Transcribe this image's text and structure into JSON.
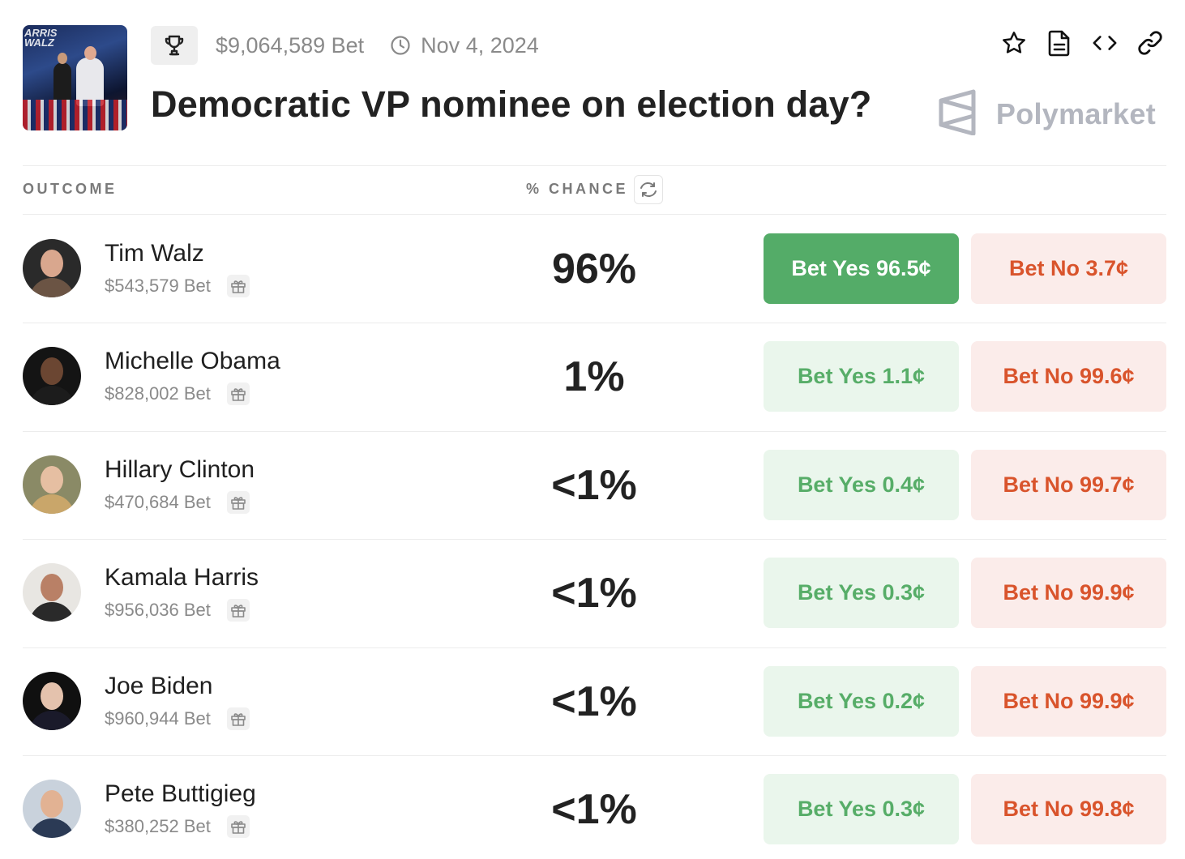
{
  "header": {
    "volume": "$9,064,589 Bet",
    "date": "Nov 4, 2024",
    "title": "Democratic VP nominee on election day?",
    "brand": "Polymarket",
    "thumbnail_sign": "ARRIS\nWALZ",
    "icons": [
      "trophy-icon",
      "clock-icon",
      "star-icon",
      "document-icon",
      "embed-code-icon",
      "link-icon",
      "polymarket-logo-icon"
    ]
  },
  "table": {
    "col_outcome": "OUTCOME",
    "col_chance": "% CHANCE"
  },
  "outcomes": [
    {
      "name": "Tim Walz",
      "volume": "$543,579 Bet",
      "chance": "96%",
      "yes": "Bet Yes 96.5¢",
      "no": "Bet No 3.7¢",
      "yes_active": true,
      "skin": "#d9a78e",
      "suit": "#6b5444",
      "bg": "#2a2a2a"
    },
    {
      "name": "Michelle Obama",
      "volume": "$828,002 Bet",
      "chance": "1%",
      "yes": "Bet Yes 1.1¢",
      "no": "Bet No 99.6¢",
      "yes_active": false,
      "skin": "#6b4632",
      "suit": "#1c1c1c",
      "bg": "#141414"
    },
    {
      "name": "Hillary Clinton",
      "volume": "$470,684 Bet",
      "chance": "<1%",
      "yes": "Bet Yes 0.4¢",
      "no": "Bet No 99.7¢",
      "yes_active": false,
      "skin": "#e6bfa2",
      "suit": "#c9a66a",
      "bg": "#8a8a66"
    },
    {
      "name": "Kamala Harris",
      "volume": "$956,036 Bet",
      "chance": "<1%",
      "yes": "Bet Yes 0.3¢",
      "no": "Bet No 99.9¢",
      "yes_active": false,
      "skin": "#b98066",
      "suit": "#2a2a2a",
      "bg": "#e8e6e2"
    },
    {
      "name": "Joe Biden",
      "volume": "$960,944 Bet",
      "chance": "<1%",
      "yes": "Bet Yes 0.2¢",
      "no": "Bet No 99.9¢",
      "yes_active": false,
      "skin": "#e4c2ad",
      "suit": "#1a1a2a",
      "bg": "#101010"
    },
    {
      "name": "Pete Buttigieg",
      "volume": "$380,252 Bet",
      "chance": "<1%",
      "yes": "Bet Yes 0.3¢",
      "no": "Bet No 99.8¢",
      "yes_active": false,
      "skin": "#e2b293",
      "suit": "#2b3a55",
      "bg": "#c9d2dc"
    }
  ],
  "colors": {
    "yes_active_bg": "#54ac68",
    "yes_bg": "#eaf6ec",
    "yes_text": "#57ad68",
    "no_bg": "#fbecea",
    "no_text": "#d9542c"
  }
}
